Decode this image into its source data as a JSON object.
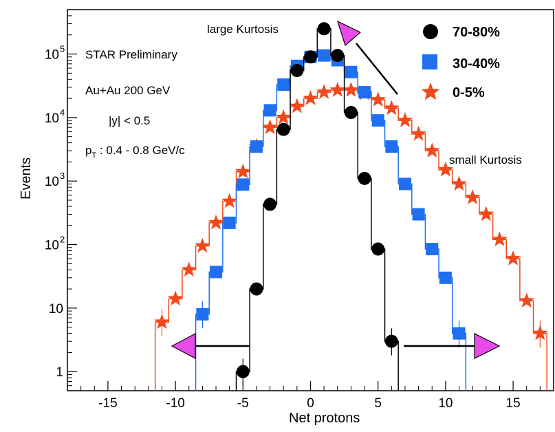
{
  "chart_data": {
    "type": "scatter",
    "log_y": true,
    "xlim": [
      -18,
      18
    ],
    "ylim": [
      0.5,
      500000
    ],
    "xlabel": "Net protons",
    "ylabel": "Events",
    "x_ticks": [
      -15,
      -10,
      -5,
      0,
      5,
      10,
      15
    ],
    "y_ticks": [
      {
        "value": 1,
        "base": "1",
        "exp": ""
      },
      {
        "value": 10,
        "base": "10",
        "exp": ""
      },
      {
        "value": 100,
        "base": "10",
        "exp": "2"
      },
      {
        "value": 1000,
        "base": "10",
        "exp": "3"
      },
      {
        "value": 10000,
        "base": "10",
        "exp": "4"
      },
      {
        "value": 100000,
        "base": "10",
        "exp": "5"
      }
    ],
    "series": [
      {
        "name": "70-80%",
        "color": "#000000",
        "marker": "circle",
        "points": [
          [
            -5,
            1
          ],
          [
            -4,
            20
          ],
          [
            -3,
            430
          ],
          [
            -2,
            6500
          ],
          [
            -1,
            55000
          ],
          [
            0,
            90000
          ],
          [
            1,
            250000
          ],
          [
            2,
            95000
          ],
          [
            3,
            12000
          ],
          [
            4,
            1100
          ],
          [
            5,
            85
          ],
          [
            6,
            3
          ]
        ]
      },
      {
        "name": "30-40%",
        "color": "#1f6ff0",
        "marker": "square",
        "points": [
          [
            -8,
            8
          ],
          [
            -7,
            37
          ],
          [
            -6,
            220
          ],
          [
            -5,
            880
          ],
          [
            -4,
            3500
          ],
          [
            -3,
            13000
          ],
          [
            -2,
            33000
          ],
          [
            -1,
            65000
          ],
          [
            0,
            90000
          ],
          [
            1,
            95000
          ],
          [
            2,
            80000
          ],
          [
            3,
            52000
          ],
          [
            4,
            25000
          ],
          [
            5,
            9000
          ],
          [
            6,
            3500
          ],
          [
            7,
            900
          ],
          [
            8,
            300
          ],
          [
            9,
            85
          ],
          [
            10,
            30
          ],
          [
            11,
            4
          ]
        ]
      },
      {
        "name": "0-5%",
        "color": "#f04a1c",
        "marker": "star",
        "points": [
          [
            -11,
            6
          ],
          [
            -10,
            14
          ],
          [
            -9,
            40
          ],
          [
            -8,
            95
          ],
          [
            -7,
            220
          ],
          [
            -6,
            480
          ],
          [
            -5,
            1400
          ],
          [
            -4,
            3500
          ],
          [
            -3,
            7000
          ],
          [
            -2,
            10000
          ],
          [
            -1,
            15000
          ],
          [
            0,
            20000
          ],
          [
            1,
            25000
          ],
          [
            2,
            27000
          ],
          [
            3,
            27000
          ],
          [
            4,
            24000
          ],
          [
            5,
            19000
          ],
          [
            6,
            14000
          ],
          [
            7,
            9000
          ],
          [
            8,
            5500
          ],
          [
            9,
            3000
          ],
          [
            10,
            1500
          ],
          [
            11,
            900
          ],
          [
            12,
            550
          ],
          [
            13,
            300
          ],
          [
            14,
            120
          ],
          [
            15,
            60
          ],
          [
            16,
            13
          ],
          [
            17,
            4
          ]
        ]
      }
    ],
    "annotations": {
      "star_preliminary": "STAR Preliminary",
      "system": "Au+Au 200 GeV",
      "rapidity": "|y| < 0.5",
      "pt_base": "p",
      "pt_sub": "T",
      "pt_range": " : 0.4 - 0.8 GeV/c",
      "large_kurtosis": "large Kurtosis",
      "small_kurtosis": "small Kurtosis"
    }
  }
}
